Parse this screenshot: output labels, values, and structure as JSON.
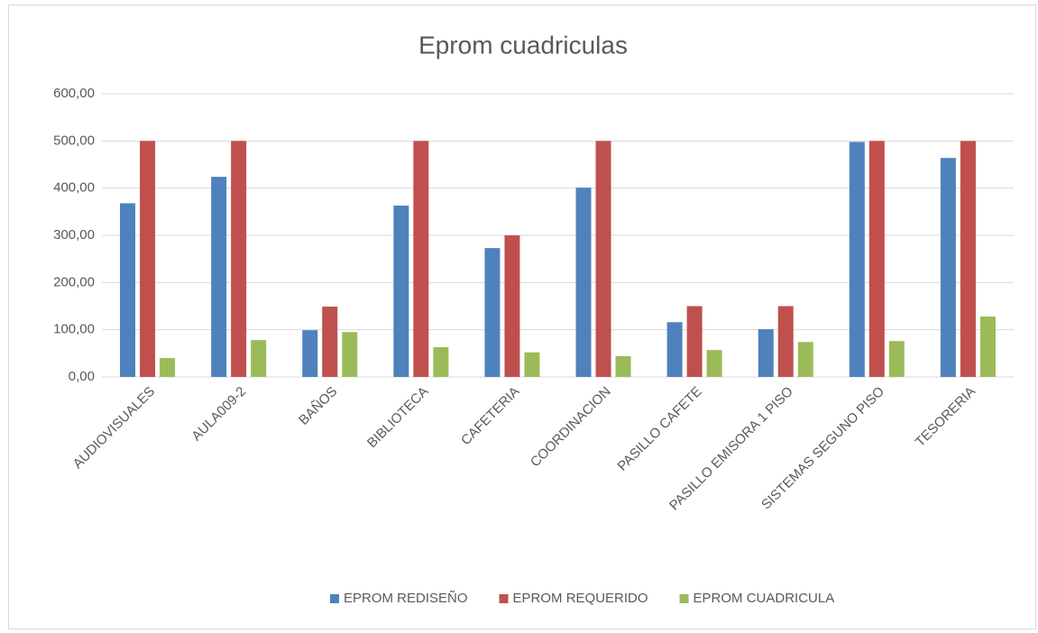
{
  "chart_data": {
    "type": "bar",
    "title": "Eprom cuadriculas",
    "categories": [
      "AUDIOVISUALES",
      "AULA009-2",
      "BAÑOS",
      "BIBLIOTECA",
      "CAFETERIA",
      "COORDINACION",
      "PASILLO CAFETE",
      "PASILLO EMISORA 1 PISO",
      "SISTEMAS SEGUNO PISO",
      "TESORERIA"
    ],
    "series": [
      {
        "name": "EPROM REDISEÑO",
        "color": "#4f81bd",
        "values": [
          368,
          424,
          99,
          363,
          273,
          401,
          116,
          101,
          498,
          464
        ]
      },
      {
        "name": "EPROM REQUERIDO",
        "color": "#c0504d",
        "values": [
          500,
          500,
          149,
          500,
          300,
          500,
          150,
          150,
          500,
          500
        ]
      },
      {
        "name": "EPROM CUADRICULA",
        "color": "#9bbb59",
        "values": [
          40,
          78,
          95,
          63,
          52,
          44,
          57,
          74,
          76,
          128
        ]
      }
    ],
    "ylim": [
      0,
      600
    ],
    "yticks": [
      {
        "value": 0,
        "label": "0,00"
      },
      {
        "value": 100,
        "label": "100,00"
      },
      {
        "value": 200,
        "label": "200,00"
      },
      {
        "value": 300,
        "label": "300,00"
      },
      {
        "value": 400,
        "label": "400,00"
      },
      {
        "value": 500,
        "label": "500,00"
      },
      {
        "value": 600,
        "label": "600,00"
      }
    ],
    "grid": true,
    "legend": "bottom"
  }
}
